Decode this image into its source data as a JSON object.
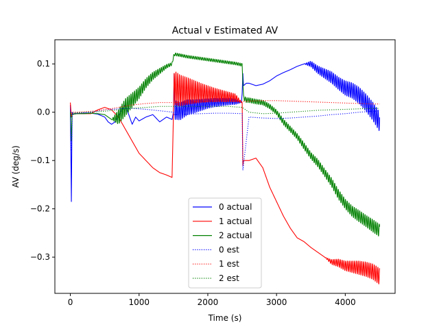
{
  "chart_data": {
    "type": "line",
    "title": "Actual v Estimated AV",
    "xlabel": "Time (s)",
    "ylabel": "AV (deg/s)",
    "xlim": [
      -225,
      4725
    ],
    "ylim": [
      -0.375,
      0.15
    ],
    "xticks": [
      0,
      1000,
      2000,
      3000,
      4000
    ],
    "xtick_labels": [
      "0",
      "1000",
      "2000",
      "3000",
      "4000"
    ],
    "yticks": [
      -0.3,
      -0.2,
      -0.1,
      0.0,
      0.1
    ],
    "ytick_labels": [
      "−0.3",
      "−0.2",
      "−0.1",
      "0.0",
      "0.1"
    ],
    "grid": false,
    "legend_position": "lower-center",
    "series": [
      {
        "name": "0 actual",
        "color": "#0000ff",
        "style": "solid",
        "x": [
          0,
          15,
          25,
          40,
          60,
          100,
          200,
          300,
          400,
          500,
          550,
          600,
          650,
          700,
          750,
          800,
          850,
          900,
          950,
          1000,
          1100,
          1200,
          1300,
          1400,
          1480,
          1500,
          1510,
          1520,
          1600,
          1700,
          1800,
          1900,
          2000,
          2100,
          2200,
          2300,
          2400,
          2490,
          2500,
          2510,
          2520,
          2560,
          2600,
          2700,
          2800,
          2900,
          3000,
          3100,
          3200,
          3300,
          3400,
          3500,
          3600,
          3700,
          3800,
          3900,
          4000,
          4100,
          4200,
          4300,
          4400,
          4500
        ],
        "y": [
          0.015,
          -0.185,
          0.0,
          -0.005,
          -0.003,
          -0.003,
          -0.002,
          -0.002,
          -0.004,
          -0.01,
          -0.02,
          -0.025,
          -0.02,
          -0.008,
          0.005,
          0.015,
          -0.005,
          -0.025,
          -0.01,
          -0.018,
          -0.01,
          -0.005,
          -0.02,
          -0.01,
          -0.015,
          0.0,
          0.08,
          0.005,
          0.002,
          0.01,
          0.012,
          0.015,
          0.018,
          0.02,
          0.021,
          0.022,
          0.022,
          0.02,
          0.04,
          0.08,
          0.055,
          0.06,
          0.06,
          0.055,
          0.058,
          0.065,
          0.075,
          0.082,
          0.088,
          0.095,
          0.1,
          0.1,
          0.088,
          0.08,
          0.072,
          0.06,
          0.05,
          0.045,
          0.035,
          0.02,
          0.002,
          -0.02
        ],
        "amp": [
          0,
          0,
          0,
          0,
          0,
          0,
          0,
          0,
          0,
          0,
          0,
          0,
          0,
          0,
          0,
          0,
          0,
          0,
          0,
          0,
          0,
          0,
          0,
          0,
          0,
          0,
          0,
          0.02,
          0.018,
          0.016,
          0.014,
          0.012,
          0.01,
          0.009,
          0.008,
          0.007,
          0.006,
          0,
          0,
          0,
          0,
          0,
          0,
          0,
          0,
          0,
          0,
          0,
          0,
          0,
          0,
          0.006,
          0.008,
          0.01,
          0.012,
          0.013,
          0.015,
          0.016,
          0.017,
          0.018,
          0.019,
          0.02
        ]
      },
      {
        "name": "1 actual",
        "color": "#ff0000",
        "style": "solid",
        "x": [
          0,
          15,
          25,
          40,
          100,
          200,
          300,
          400,
          500,
          600,
          700,
          800,
          900,
          1000,
          1100,
          1200,
          1300,
          1400,
          1480,
          1500,
          1510,
          1520,
          1600,
          1700,
          1800,
          1900,
          2000,
          2100,
          2200,
          2300,
          2400,
          2500,
          2510,
          2520,
          2560,
          2600,
          2700,
          2800,
          2900,
          3000,
          3100,
          3200,
          3300,
          3400,
          3500,
          3600,
          3700,
          3800,
          3900,
          4000,
          4100,
          4200,
          4300,
          4400,
          4500
        ],
        "y": [
          0.02,
          -0.01,
          -0.005,
          -0.004,
          -0.003,
          -0.003,
          -0.003,
          0.005,
          0.01,
          0.005,
          -0.01,
          -0.035,
          -0.06,
          -0.085,
          -0.1,
          -0.115,
          -0.125,
          -0.13,
          -0.135,
          -0.005,
          0.08,
          0.05,
          0.045,
          0.044,
          0.042,
          0.04,
          0.038,
          0.036,
          0.034,
          0.032,
          0.03,
          0.02,
          -0.11,
          -0.1,
          -0.1,
          -0.1,
          -0.095,
          -0.115,
          -0.155,
          -0.185,
          -0.215,
          -0.24,
          -0.26,
          -0.268,
          -0.28,
          -0.29,
          -0.3,
          -0.31,
          -0.312,
          -0.318,
          -0.32,
          -0.322,
          -0.325,
          -0.33,
          -0.34
        ],
        "amp": [
          0,
          0,
          0,
          0,
          0,
          0,
          0,
          0,
          0,
          0,
          0,
          0,
          0,
          0,
          0,
          0,
          0,
          0,
          0,
          0,
          0,
          0.035,
          0.032,
          0.028,
          0.024,
          0.02,
          0.017,
          0.014,
          0.012,
          0.01,
          0.008,
          0,
          0,
          0,
          0,
          0,
          0,
          0,
          0,
          0,
          0,
          0,
          0,
          0,
          0,
          0,
          0,
          0.005,
          0.008,
          0.01,
          0.012,
          0.014,
          0.015,
          0.016,
          0.017
        ]
      },
      {
        "name": "2 actual",
        "color": "#008000",
        "style": "solid",
        "x": [
          0,
          15,
          25,
          40,
          100,
          200,
          300,
          400,
          500,
          600,
          700,
          800,
          900,
          1000,
          1100,
          1200,
          1300,
          1400,
          1480,
          1500,
          1520,
          1600,
          1700,
          1800,
          1900,
          2000,
          2100,
          2200,
          2300,
          2400,
          2500,
          2520,
          2560,
          2600,
          2700,
          2800,
          2900,
          3000,
          3100,
          3200,
          3300,
          3400,
          3500,
          3600,
          3700,
          3800,
          3900,
          4000,
          4100,
          4200,
          4300,
          4400,
          4500
        ],
        "y": [
          0.0,
          -0.06,
          -0.005,
          -0.004,
          -0.003,
          -0.003,
          -0.002,
          -0.003,
          -0.005,
          -0.015,
          -0.01,
          0.01,
          0.025,
          0.04,
          0.06,
          0.075,
          0.085,
          0.095,
          0.1,
          0.115,
          0.12,
          0.118,
          0.115,
          0.113,
          0.111,
          0.109,
          0.107,
          0.105,
          0.103,
          0.101,
          0.098,
          0.03,
          0.025,
          0.025,
          0.022,
          0.02,
          0.012,
          0.0,
          -0.02,
          -0.035,
          -0.05,
          -0.07,
          -0.09,
          -0.105,
          -0.125,
          -0.145,
          -0.17,
          -0.19,
          -0.205,
          -0.215,
          -0.225,
          -0.235,
          -0.245
        ],
        "amp": [
          0,
          0,
          0,
          0,
          0,
          0,
          0,
          0,
          0,
          0,
          0.015,
          0.018,
          0.015,
          0.012,
          0.01,
          0.008,
          0.006,
          0.004,
          0.003,
          0.003,
          0.003,
          0.003,
          0.003,
          0.003,
          0.003,
          0.003,
          0.003,
          0.003,
          0.003,
          0.003,
          0.003,
          0.005,
          0.005,
          0.005,
          0.005,
          0.005,
          0.005,
          0.005,
          0.006,
          0.006,
          0.006,
          0.007,
          0.007,
          0.008,
          0.008,
          0.009,
          0.01,
          0.01,
          0.011,
          0.012,
          0.012,
          0.013,
          0.013
        ]
      },
      {
        "name": "0 est",
        "color": "#0000ff",
        "style": "dotted",
        "x": [
          0,
          15,
          30,
          100,
          300,
          500,
          700,
          900,
          1100,
          1300,
          1500,
          1510,
          1700,
          1900,
          2100,
          2300,
          2500,
          2510,
          2600,
          2800,
          3000,
          3200,
          3400,
          3600,
          3800,
          4000,
          4200,
          4400,
          4500
        ],
        "y": [
          0.0,
          -0.08,
          -0.002,
          -0.002,
          0.0,
          0.005,
          0.007,
          0.008,
          0.006,
          0.003,
          0.0,
          -0.005,
          -0.004,
          -0.003,
          -0.002,
          -0.002,
          -0.003,
          -0.12,
          -0.01,
          -0.012,
          -0.013,
          -0.012,
          -0.01,
          -0.008,
          -0.005,
          -0.003,
          0.0,
          0.002,
          0.003
        ],
        "amp": [
          0,
          0,
          0,
          0,
          0,
          0,
          0,
          0,
          0,
          0,
          0,
          0,
          0,
          0,
          0,
          0,
          0,
          0,
          0,
          0,
          0,
          0,
          0,
          0,
          0,
          0,
          0,
          0,
          0
        ]
      },
      {
        "name": "1 est",
        "color": "#ff0000",
        "style": "dotted",
        "x": [
          0,
          15,
          30,
          100,
          300,
          500,
          700,
          900,
          1100,
          1300,
          1500,
          1700,
          1900,
          2100,
          2300,
          2500,
          2600,
          2800,
          3000,
          3200,
          3400,
          3600,
          3800,
          4000,
          4200,
          4400,
          4500
        ],
        "y": [
          0.015,
          -0.01,
          0.0,
          0.0,
          0.002,
          0.005,
          0.01,
          0.015,
          0.018,
          0.02,
          0.02,
          0.021,
          0.022,
          0.022,
          0.022,
          0.022,
          0.023,
          0.024,
          0.024,
          0.023,
          0.022,
          0.021,
          0.02,
          0.019,
          0.018,
          0.017,
          0.017
        ],
        "amp": [
          0,
          0,
          0,
          0,
          0,
          0,
          0,
          0,
          0,
          0,
          0,
          0,
          0,
          0,
          0,
          0,
          0,
          0,
          0,
          0,
          0,
          0,
          0,
          0,
          0,
          0,
          0
        ]
      },
      {
        "name": "2 est",
        "color": "#008000",
        "style": "dotted",
        "x": [
          0,
          15,
          30,
          100,
          300,
          500,
          700,
          900,
          1100,
          1300,
          1500,
          1700,
          1900,
          2100,
          2300,
          2500,
          2600,
          2800,
          3000,
          3200,
          3400,
          3600,
          3800,
          4000,
          4200,
          4400,
          4500
        ],
        "y": [
          0.0,
          -0.01,
          -0.002,
          -0.001,
          0.0,
          0.002,
          0.005,
          0.008,
          0.01,
          0.012,
          0.012,
          0.012,
          0.012,
          0.012,
          0.012,
          0.01,
          0.0,
          -0.003,
          -0.002,
          0.0,
          0.002,
          0.004,
          0.005,
          0.006,
          0.007,
          0.008,
          0.008
        ],
        "amp": [
          0,
          0,
          0,
          0,
          0,
          0,
          0,
          0,
          0,
          0,
          0,
          0,
          0,
          0,
          0,
          0,
          0,
          0,
          0,
          0,
          0,
          0,
          0,
          0,
          0,
          0,
          0
        ]
      }
    ]
  }
}
